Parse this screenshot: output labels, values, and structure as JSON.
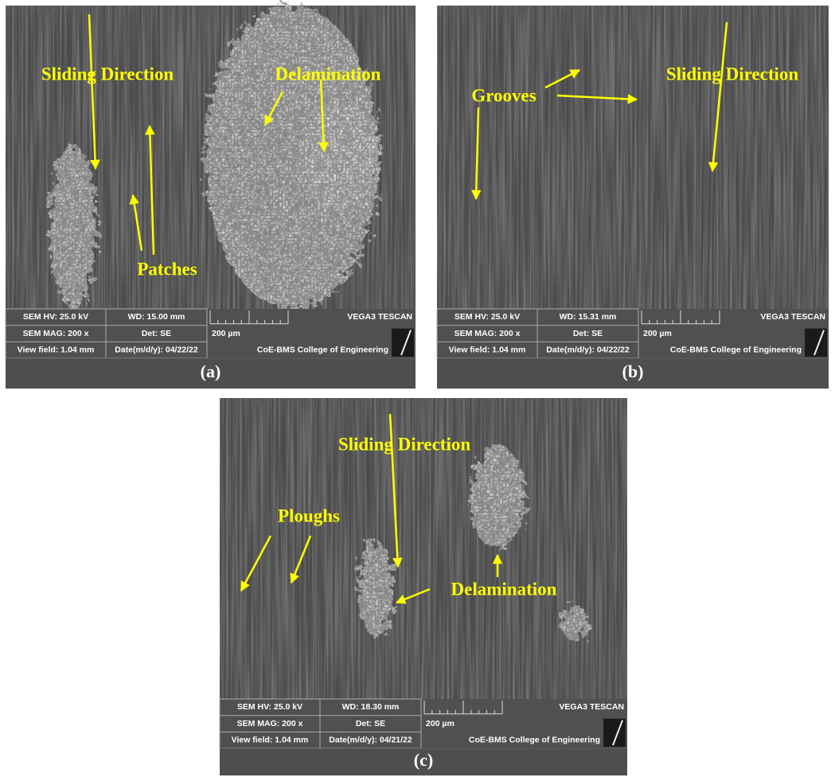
{
  "panels": [
    {
      "label": "(a)",
      "annotations": [
        "Sliding Direction",
        "Delamination",
        "Patches"
      ],
      "info": {
        "hv": "SEM HV: 25.0 kV",
        "wd": "WD: 15.00 mm",
        "brand": "VEGA3 TESCAN",
        "mag": "SEM MAG: 200 x",
        "det": "Det: SE",
        "scale": "200 µm",
        "view": "View field: 1.04 mm",
        "date": "Date(m/d/y): 04/22/22",
        "org": "CoE-BMS College of Engineering"
      }
    },
    {
      "label": "(b)",
      "annotations": [
        "Grooves",
        "Sliding Direction"
      ],
      "info": {
        "hv": "SEM HV: 25.0 kV",
        "wd": "WD: 15.31 mm",
        "brand": "VEGA3 TESCAN",
        "mag": "SEM MAG: 200 x",
        "det": "Det: SE",
        "scale": "200 µm",
        "view": "View field: 1.04 mm",
        "date": "Date(m/d/y): 04/22/22",
        "org": "CoE-BMS College of Engineering"
      }
    },
    {
      "label": "(c)",
      "annotations": [
        "Sliding Direction",
        "Ploughs",
        "Delamination"
      ],
      "info": {
        "hv": "SEM HV: 25.0 kV",
        "wd": "WD: 18.30 mm",
        "brand": "VEGA3 TESCAN",
        "mag": "SEM MAG: 200 x",
        "det": "Det: SE",
        "scale": "200 µm",
        "view": "View field: 1.04 mm",
        "date": "Date(m/d/y): 04/21/22",
        "org": "CoE-BMS College of Engineering"
      }
    }
  ]
}
